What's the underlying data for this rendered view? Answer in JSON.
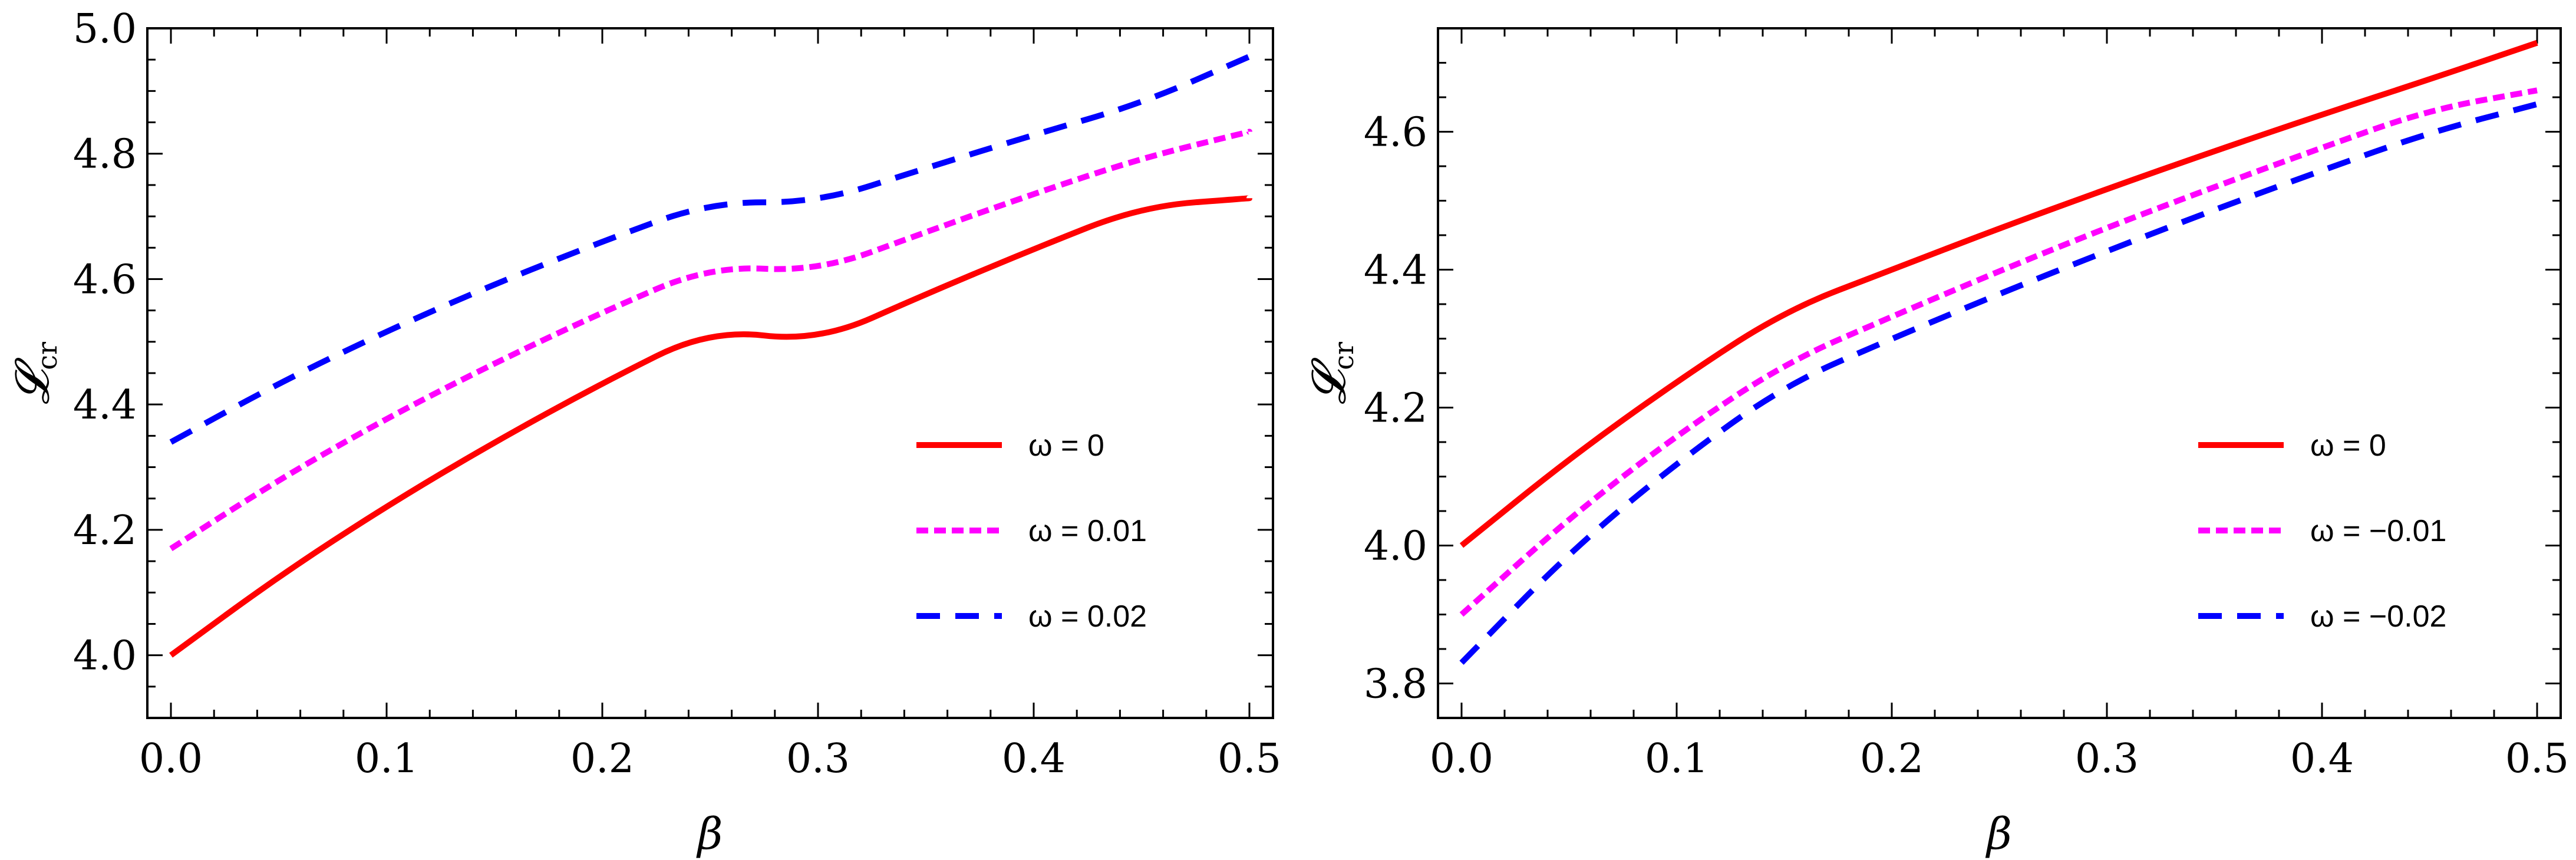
{
  "chart_data": [
    {
      "type": "line",
      "title": "",
      "xlabel": "β",
      "ylabel": "𝓛",
      "ylabel_sub": "cr",
      "xlim": [
        0,
        0.5
      ],
      "ylim": [
        3.9,
        5.0
      ],
      "xticks": [
        0.0,
        0.1,
        0.2,
        0.3,
        0.4,
        0.5
      ],
      "xtick_labels": [
        "0.0",
        "0.1",
        "0.2",
        "0.3",
        "0.4",
        "0.5"
      ],
      "yticks": [
        4.0,
        4.2,
        4.4,
        4.6,
        4.8,
        5.0
      ],
      "ytick_labels": [
        "4.0",
        "4.2",
        "4.4",
        "4.6",
        "4.8",
        "5.0"
      ],
      "grid": false,
      "legend_position": "center-right",
      "x": [
        0.0,
        0.05,
        0.1,
        0.15,
        0.2,
        0.25,
        0.3,
        0.35,
        0.4,
        0.45,
        0.5
      ],
      "series": [
        {
          "name": "ω = 0",
          "color": "#ff0000",
          "style": "solid",
          "values": [
            4.0,
            4.126,
            4.238,
            4.34,
            4.434,
            4.52,
            4.5,
            4.576,
            4.648,
            4.716,
            4.729
          ]
        },
        {
          "name": "ω = 0.01",
          "color": "#ff00ff",
          "style": "dotted",
          "values": [
            4.17,
            4.28,
            4.378,
            4.466,
            4.547,
            4.621,
            4.612,
            4.675,
            4.736,
            4.793,
            4.835
          ]
        },
        {
          "name": "ω = 0.02",
          "color": "#0000ff",
          "style": "dashed",
          "values": [
            4.34,
            4.434,
            4.517,
            4.592,
            4.66,
            4.723,
            4.722,
            4.777,
            4.83,
            4.88,
            4.955
          ]
        }
      ]
    },
    {
      "type": "line",
      "title": "",
      "xlabel": "β",
      "ylabel": "𝓛",
      "ylabel_sub": "cr",
      "xlim": [
        0,
        0.5
      ],
      "ylim": [
        3.75,
        4.75
      ],
      "xticks": [
        0.0,
        0.1,
        0.2,
        0.3,
        0.4,
        0.5
      ],
      "xtick_labels": [
        "0.0",
        "0.1",
        "0.2",
        "0.3",
        "0.4",
        "0.5"
      ],
      "yticks": [
        3.8,
        4.0,
        4.2,
        4.4,
        4.6
      ],
      "ytick_labels": [
        "3.8",
        "4.0",
        "4.2",
        "4.4",
        "4.6"
      ],
      "grid": false,
      "legend_position": "center-right",
      "x": [
        0.0,
        0.05,
        0.1,
        0.15,
        0.2,
        0.25,
        0.3,
        0.35,
        0.4,
        0.45,
        0.5
      ],
      "series": [
        {
          "name": "ω = 0",
          "color": "#ff0000",
          "style": "solid",
          "values": [
            4.0,
            4.126,
            4.238,
            4.34,
            4.4,
            4.46,
            4.517,
            4.572,
            4.625,
            4.676,
            4.729
          ]
        },
        {
          "name": "ω = −0.01",
          "color": "#ff00ff",
          "style": "dotted",
          "values": [
            3.9,
            4.04,
            4.16,
            4.264,
            4.332,
            4.398,
            4.461,
            4.52,
            4.577,
            4.632,
            4.66
          ]
        },
        {
          "name": "ω = −0.02",
          "color": "#0000ff",
          "style": "dashed",
          "values": [
            3.83,
            3.99,
            4.12,
            4.232,
            4.3,
            4.365,
            4.427,
            4.487,
            4.544,
            4.599,
            4.64
          ]
        }
      ]
    }
  ]
}
